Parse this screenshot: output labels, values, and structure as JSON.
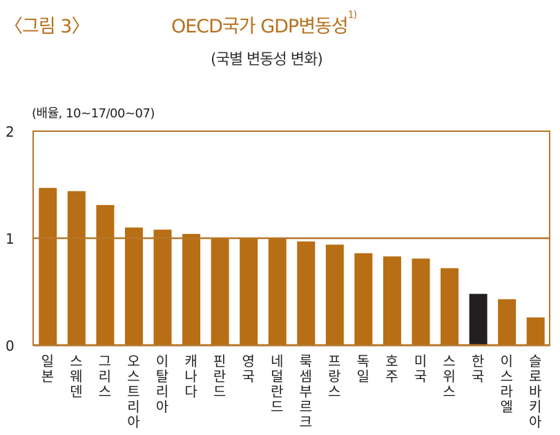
{
  "header": {
    "figure_label": "〈그림 3〉",
    "title": "OECD국가 GDP변동성",
    "title_footnote": "1)",
    "subtitle": "(국별 변동성 변화)"
  },
  "chart_data": {
    "type": "bar",
    "title": "OECD국가 GDP변동성",
    "subtitle": "(국별 변동성 변화)",
    "ylabel": "(배율, 10~17/00~07)",
    "xlabel": "",
    "ylim": [
      0,
      2
    ],
    "yticks": [
      "0",
      "1",
      "2"
    ],
    "reference_line": 1,
    "grid": false,
    "categories": [
      "일본",
      "스웨덴",
      "그리스",
      "오스트리아",
      "이탈리아",
      "캐나다",
      "핀란드",
      "영국",
      "네덜란드",
      "룩셈부르크",
      "프랑스",
      "독일",
      "호주",
      "미국",
      "스위스",
      "한국",
      "이스라엘",
      "슬로바키아"
    ],
    "values": [
      1.47,
      1.44,
      1.31,
      1.1,
      1.08,
      1.04,
      1.0,
      1.0,
      1.0,
      0.97,
      0.94,
      0.86,
      0.83,
      0.81,
      0.72,
      0.48,
      0.43,
      0.26
    ],
    "highlight": "한국",
    "colors": {
      "bar": "#b86e14",
      "highlight": "#231f20",
      "frame": "#b5772a"
    }
  }
}
